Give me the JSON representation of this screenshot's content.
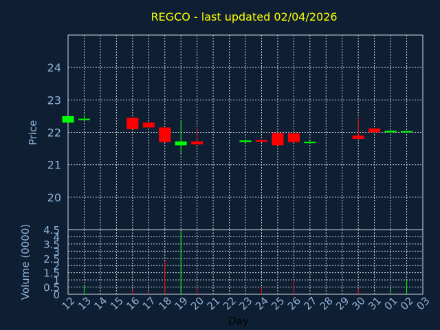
{
  "chart_data": {
    "type": "candlestick",
    "title": "REGCO - last updated 02/04/2026",
    "xlabel": "Day",
    "price_ylabel": "Price",
    "volume_ylabel": "Volume (0000)",
    "price_ylim": [
      19.0,
      25.0
    ],
    "price_yticks": [
      20,
      21,
      22,
      23,
      24
    ],
    "volume_ylim": [
      0,
      4.5
    ],
    "volume_yticks": [
      "0",
      "0.5",
      "1",
      "1.5",
      "2",
      "2.5",
      "3",
      "3.5",
      "4",
      "4.5"
    ],
    "grid": true,
    "x_labels": [
      "12",
      "13",
      "14",
      "15",
      "16",
      "17",
      "18",
      "19",
      "20",
      "21",
      "22",
      "23",
      "24",
      "25",
      "26",
      "27",
      "28",
      "29",
      "30",
      "31",
      "01",
      "02",
      "03"
    ],
    "up_color": "#00ff00",
    "down_color": "#ff0000",
    "candles": [
      {
        "day": "12",
        "open": 22.3,
        "high": 22.5,
        "low": 22.3,
        "close": 22.5,
        "volume": 0.0
      },
      {
        "day": "13",
        "open": 22.4,
        "high": 22.55,
        "low": 22.4,
        "close": 22.42,
        "volume": 0.6
      },
      {
        "day": "16",
        "open": 22.45,
        "high": 22.45,
        "low": 22.1,
        "close": 22.1,
        "volume": 0.4
      },
      {
        "day": "17",
        "open": 22.3,
        "high": 22.3,
        "low": 22.15,
        "close": 22.15,
        "volume": 0.2
      },
      {
        "day": "18",
        "open": 22.15,
        "high": 22.15,
        "low": 21.7,
        "close": 21.7,
        "volume": 2.3
      },
      {
        "day": "19",
        "open": 21.6,
        "high": 22.35,
        "low": 21.35,
        "close": 21.72,
        "volume": 4.4
      },
      {
        "day": "20",
        "open": 21.72,
        "high": 22.1,
        "low": 21.62,
        "close": 21.63,
        "volume": 0.5
      },
      {
        "day": "23",
        "open": 21.7,
        "high": 21.75,
        "low": 21.7,
        "close": 21.75,
        "volume": 0.0
      },
      {
        "day": "24",
        "open": 21.76,
        "high": 21.78,
        "low": 21.7,
        "close": 21.71,
        "volume": 0.5
      },
      {
        "day": "25",
        "open": 21.98,
        "high": 21.98,
        "low": 21.6,
        "close": 21.6,
        "volume": 0.0
      },
      {
        "day": "26",
        "open": 21.97,
        "high": 21.97,
        "low": 21.7,
        "close": 21.7,
        "volume": 1.0
      },
      {
        "day": "27",
        "open": 21.68,
        "high": 21.72,
        "low": 21.68,
        "close": 21.71,
        "volume": 0.0
      },
      {
        "day": "30",
        "open": 21.9,
        "high": 22.45,
        "low": 21.8,
        "close": 21.8,
        "volume": 0.4
      },
      {
        "day": "31",
        "open": 22.12,
        "high": 22.12,
        "low": 22.0,
        "close": 22.0,
        "volume": 0.0
      },
      {
        "day": "01",
        "open": 22.0,
        "high": 22.06,
        "low": 22.0,
        "close": 22.05,
        "volume": 0.4
      },
      {
        "day": "02",
        "open": 22.0,
        "high": 22.05,
        "low": 22.0,
        "close": 22.04,
        "volume": 1.0
      }
    ]
  }
}
